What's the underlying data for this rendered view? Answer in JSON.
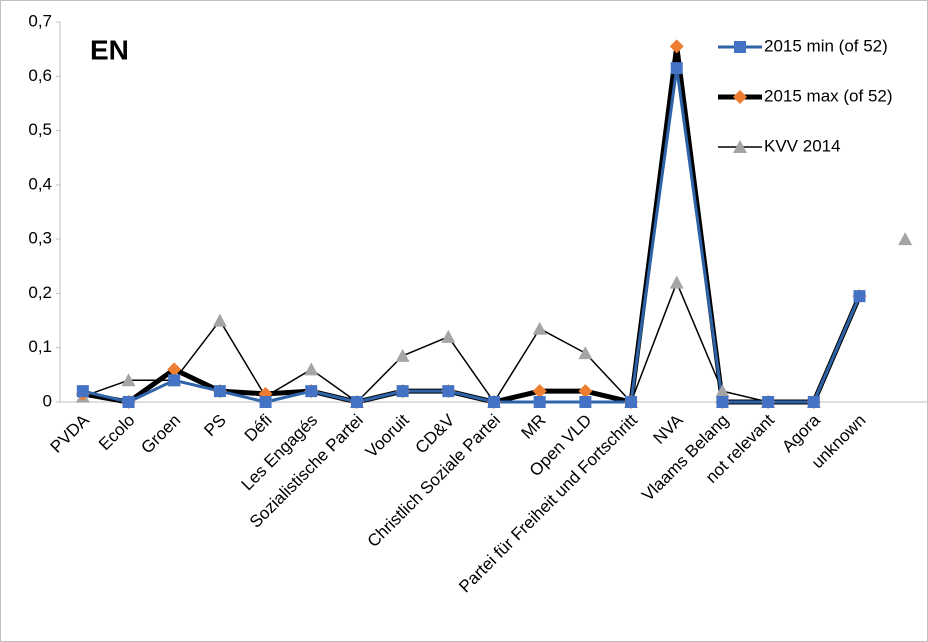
{
  "chart_data": {
    "type": "line",
    "title": "EN",
    "categories": [
      "PVDA",
      "Ecolo",
      "Groen",
      "PS",
      "Défi",
      "Les Engagés",
      "Sozialistische Partei",
      "Vooruit",
      "CD&V",
      "Christlich Soziale Partei",
      "MR",
      "Open VLD",
      "Partei für Freiheit und Fortschritt",
      "NVA",
      "Vlaams Belang",
      "not relevant",
      "Agora",
      "unknown",
      null
    ],
    "series": [
      {
        "name": "2015 min (of 52)",
        "color": "#2e63a8",
        "marker": "square",
        "marker_color": "#4472c4",
        "line_width": 3,
        "values": [
          0.02,
          0,
          0.04,
          0.02,
          0,
          0.02,
          0,
          0.02,
          0.02,
          0,
          0,
          0,
          0,
          0.615,
          0,
          0,
          0,
          0.195,
          null
        ]
      },
      {
        "name": "2015 max (of 52)",
        "color": "#000000",
        "marker": "diamond",
        "marker_color": "#ed7d31",
        "line_width": 5,
        "values": [
          0.015,
          0,
          0.06,
          0.02,
          0.015,
          0.02,
          0,
          0.02,
          0.02,
          0,
          0.02,
          0.02,
          0,
          0.655,
          0,
          0,
          0,
          0.195,
          null
        ]
      },
      {
        "name": "KVV 2014",
        "color": "#000000",
        "marker": "triangle",
        "marker_color": "#a5a5a5",
        "line_width": 1.5,
        "values": [
          0.01,
          0.04,
          0.04,
          0.15,
          0.01,
          0.06,
          0,
          0.085,
          0.12,
          0,
          0.135,
          0.09,
          0,
          0.22,
          0.02,
          0,
          0,
          null,
          0.3
        ]
      }
    ],
    "ylim": [
      0,
      0.7
    ],
    "yticks": [
      0,
      {
        "value": 0.1,
        "label": "0,1"
      },
      {
        "value": 0.2,
        "label": "0,2"
      },
      {
        "value": 0.3,
        "label": "0,3"
      },
      {
        "value": 0.4,
        "label": "0,4"
      },
      {
        "value": 0.5,
        "label": "0,5"
      },
      {
        "value": 0.6,
        "label": "0,6"
      },
      {
        "value": 0.7,
        "label": "0,7"
      }
    ],
    "grid": false,
    "legend": "top-right"
  }
}
